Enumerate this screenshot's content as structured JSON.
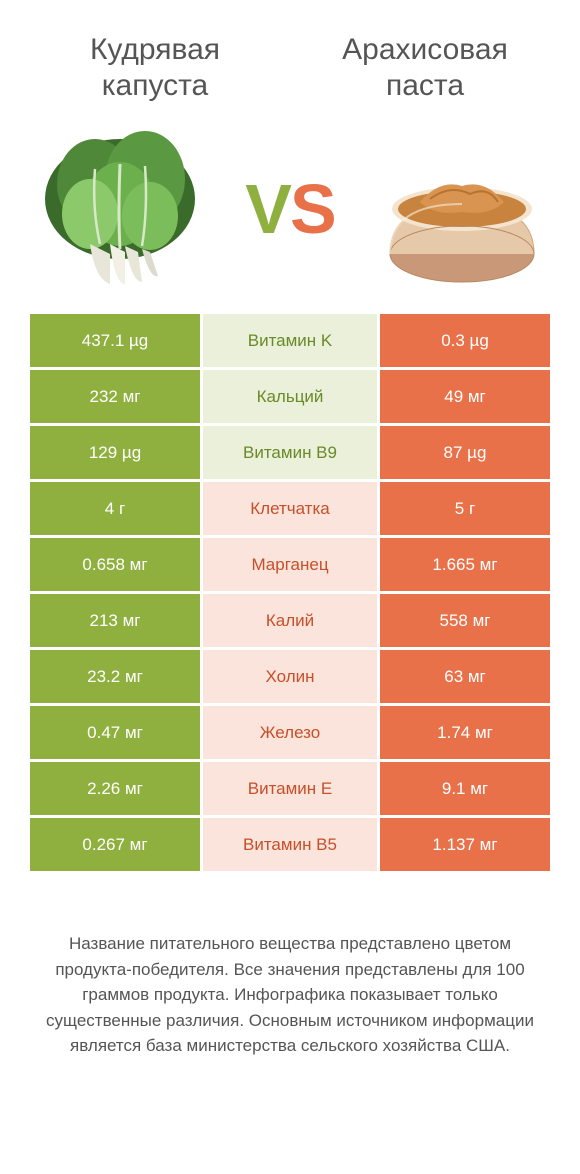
{
  "titles": {
    "left": "Кудрявая\nкапуста",
    "right": "Арахисовая\nпаста"
  },
  "vs": {
    "v": "V",
    "s": "S"
  },
  "colors": {
    "green": "#8fb03f",
    "orange": "#e8714a",
    "light_green": "#eaf0d9",
    "light_orange": "#fbe4db",
    "text_green": "#6a8a28",
    "text_orange": "#c74f29"
  },
  "rows": [
    {
      "left": "437.1 µg",
      "label": "Витамин K",
      "right": "0.3 µg",
      "winner": "left"
    },
    {
      "left": "232 мг",
      "label": "Кальций",
      "right": "49 мг",
      "winner": "left"
    },
    {
      "left": "129 µg",
      "label": "Витамин B9",
      "right": "87 µg",
      "winner": "left"
    },
    {
      "left": "4 г",
      "label": "Клетчатка",
      "right": "5 г",
      "winner": "right"
    },
    {
      "left": "0.658 мг",
      "label": "Марганец",
      "right": "1.665 мг",
      "winner": "right"
    },
    {
      "left": "213 мг",
      "label": "Калий",
      "right": "558 мг",
      "winner": "right"
    },
    {
      "left": "23.2 мг",
      "label": "Холин",
      "right": "63 мг",
      "winner": "right"
    },
    {
      "left": "0.47 мг",
      "label": "Железо",
      "right": "1.74 мг",
      "winner": "right"
    },
    {
      "left": "2.26 мг",
      "label": "Витамин E",
      "right": "9.1 мг",
      "winner": "right"
    },
    {
      "left": "0.267 мг",
      "label": "Витамин B5",
      "right": "1.137 мг",
      "winner": "right"
    }
  ],
  "footnote": "Название питательного вещества представлено цветом продукта-победителя.\nВсе значения представлены для 100 граммов продукта.\nИнфографика показывает только существенные различия.\nОсновным источником информации является база министерства сельского хозяйства США."
}
